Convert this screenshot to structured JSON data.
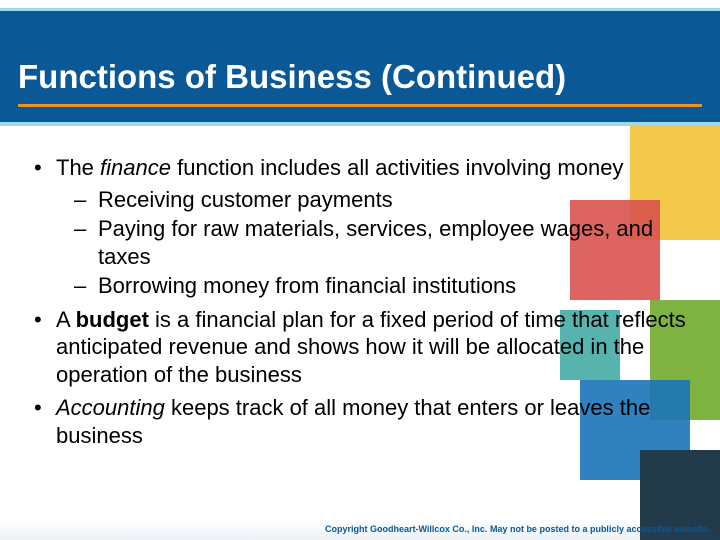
{
  "title": "Functions of Business (Continued)",
  "colors": {
    "band": "#0a5896",
    "band_border": "#9fd9e8",
    "title_underline": "#e69524",
    "text": "#000000",
    "footer_text": "#0a5896",
    "deco_blue": "#1a73b7",
    "deco_dark": "#223a4a",
    "deco_yellow": "#f4c84b",
    "deco_green": "#7fb341",
    "deco_red": "#d9534f",
    "deco_teal": "#3aa6a0"
  },
  "bullets": [
    {
      "runs": [
        {
          "t": "The "
        },
        {
          "t": "finance",
          "italic": true
        },
        {
          "t": " function includes all activities involving money"
        }
      ],
      "sub": [
        {
          "runs": [
            {
              "t": "Receiving customer payments"
            }
          ]
        },
        {
          "runs": [
            {
              "t": "Paying for raw materials, services, employee wages, and taxes"
            }
          ]
        },
        {
          "runs": [
            {
              "t": "Borrowing money from financial institutions"
            }
          ]
        }
      ]
    },
    {
      "runs": [
        {
          "t": "A "
        },
        {
          "t": "budget",
          "bold": true
        },
        {
          "t": " is a financial plan for a fixed period of time that reflects anticipated revenue and shows how it will be allocated in the operation of the business"
        }
      ]
    },
    {
      "runs": [
        {
          "t": "Accounting",
          "italic": true
        },
        {
          "t": " keeps track of all money that enters or leaves the business"
        }
      ]
    }
  ],
  "footer": "Copyright Goodheart-Willcox Co., Inc. May not be posted to a publicly accessible website.",
  "fontsizes": {
    "title": 33,
    "body": 22,
    "footer": 9
  }
}
